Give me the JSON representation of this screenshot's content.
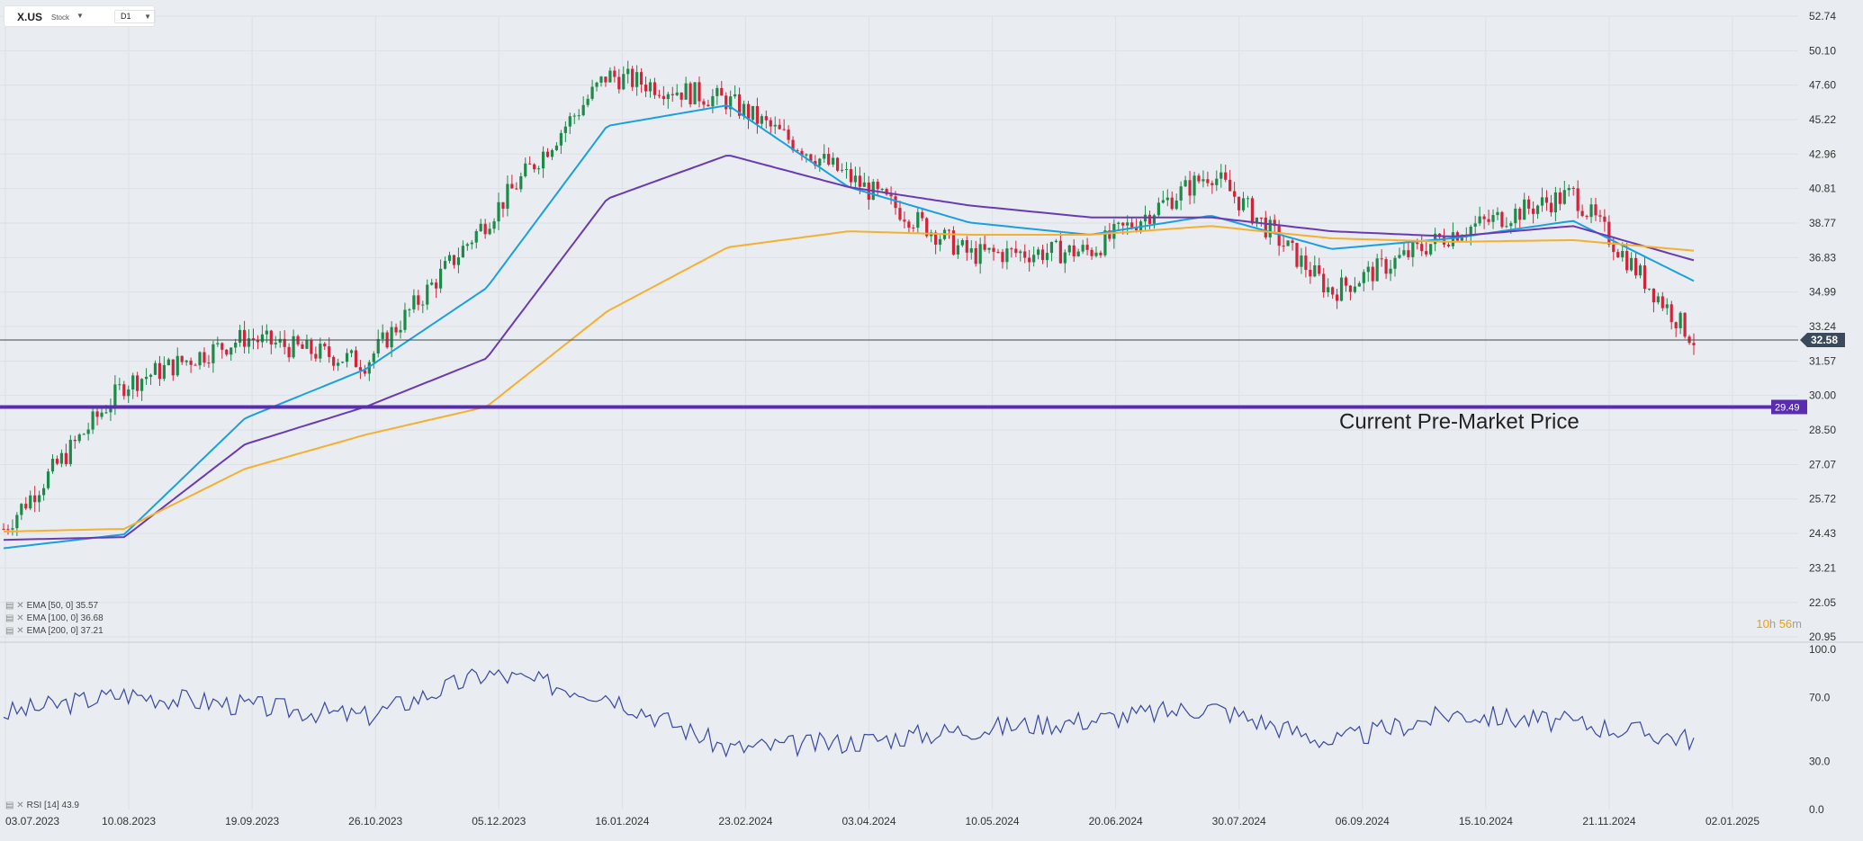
{
  "toolbar": {
    "symbol": "X.US",
    "type_label": "Stock",
    "timeframe": "D1"
  },
  "timer": {
    "hours": "10",
    "h_unit": "h",
    "minutes": "56",
    "m_unit": "m"
  },
  "annotation": {
    "text": "Current Pre-Market Price"
  },
  "price_axis": {
    "ticks": [
      "52.74",
      "50.10",
      "47.60",
      "45.22",
      "42.96",
      "40.81",
      "38.77",
      "36.83",
      "34.99",
      "33.24",
      "31.57",
      "30.00",
      "28.50",
      "27.07",
      "25.72",
      "24.43",
      "23.21",
      "22.05",
      "20.95"
    ],
    "last_price": "32.58",
    "support_level": "29.49"
  },
  "rsi_axis": {
    "ticks": [
      "100.0",
      "70.0",
      "30.0",
      "0.0"
    ]
  },
  "date_axis": [
    "03.07.2023",
    "10.08.2023",
    "19.09.2023",
    "26.10.2023",
    "05.12.2023",
    "16.01.2024",
    "23.02.2024",
    "03.04.2024",
    "10.05.2024",
    "20.06.2024",
    "30.07.2024",
    "06.09.2024",
    "15.10.2024",
    "21.11.2024",
    "02.01.2025"
  ],
  "legends": {
    "ema50": "EMA  [50,  0]  35.57",
    "ema100": "EMA  [100,  0]  36.68",
    "ema200": "EMA  [200,  0]  37.21",
    "rsi": "RSI  [14]  43.9"
  },
  "colors": {
    "up": "#1e8a4a",
    "down": "#d0243a",
    "ema50": "#1aa0e0",
    "ema100": "#6a3bb0",
    "ema200": "#f4b030",
    "support": "#5a2db0",
    "rsi": "#3848a0"
  },
  "chart_data": [
    {
      "type": "candlestick",
      "title": "X.US D1",
      "scale": "log",
      "ylim": [
        20.95,
        52.74
      ],
      "x": [
        "03.07.2023",
        "10.08.2023",
        "19.09.2023",
        "26.10.2023",
        "05.12.2023",
        "16.01.2024",
        "23.02.2024",
        "03.04.2024",
        "10.05.2024",
        "20.06.2024",
        "30.07.2024",
        "06.09.2024",
        "15.10.2024",
        "21.11.2024",
        "02.01.2025"
      ],
      "series": [
        {
          "name": "Price",
          "values": [
            24.6,
            30.5,
            32.7,
            31.5,
            38.9,
            48.3,
            46.5,
            41.5,
            37.0,
            37.2,
            41.8,
            35.0,
            38.2,
            40.5,
            32.58
          ]
        },
        {
          "name": "EMA [50, 0]",
          "values": [
            23.9,
            24.4,
            29.0,
            31.2,
            35.2,
            44.8,
            46.2,
            40.9,
            38.8,
            38.1,
            39.2,
            37.3,
            37.9,
            38.9,
            35.57
          ]
        },
        {
          "name": "EMA [100, 0]",
          "values": [
            24.2,
            24.3,
            27.9,
            29.5,
            31.7,
            40.2,
            42.9,
            40.9,
            39.8,
            39.1,
            39.1,
            38.3,
            38.0,
            38.6,
            36.68
          ]
        },
        {
          "name": "EMA [200, 0]",
          "values": [
            24.5,
            24.6,
            26.9,
            28.3,
            29.5,
            34.0,
            37.4,
            38.3,
            38.1,
            38.1,
            38.6,
            37.9,
            37.7,
            37.8,
            37.21
          ]
        }
      ],
      "levels": [
        {
          "name": "Current Pre-Market Price",
          "value": 29.49
        }
      ]
    },
    {
      "type": "line",
      "title": "RSI [14]",
      "ylim": [
        0,
        100
      ],
      "yticks": [
        0,
        30,
        70,
        100
      ],
      "x": [
        "03.07.2023",
        "10.08.2023",
        "19.09.2023",
        "26.10.2023",
        "05.12.2023",
        "16.01.2024",
        "23.02.2024",
        "03.04.2024",
        "10.05.2024",
        "20.06.2024",
        "30.07.2024",
        "06.09.2024",
        "15.10.2024",
        "21.11.2024",
        "02.01.2025"
      ],
      "series": [
        {
          "name": "RSI [14]",
          "values": [
            60,
            72,
            65,
            58,
            85,
            72,
            38,
            42,
            50,
            56,
            64,
            42,
            60,
            54,
            43.9
          ]
        }
      ]
    }
  ]
}
